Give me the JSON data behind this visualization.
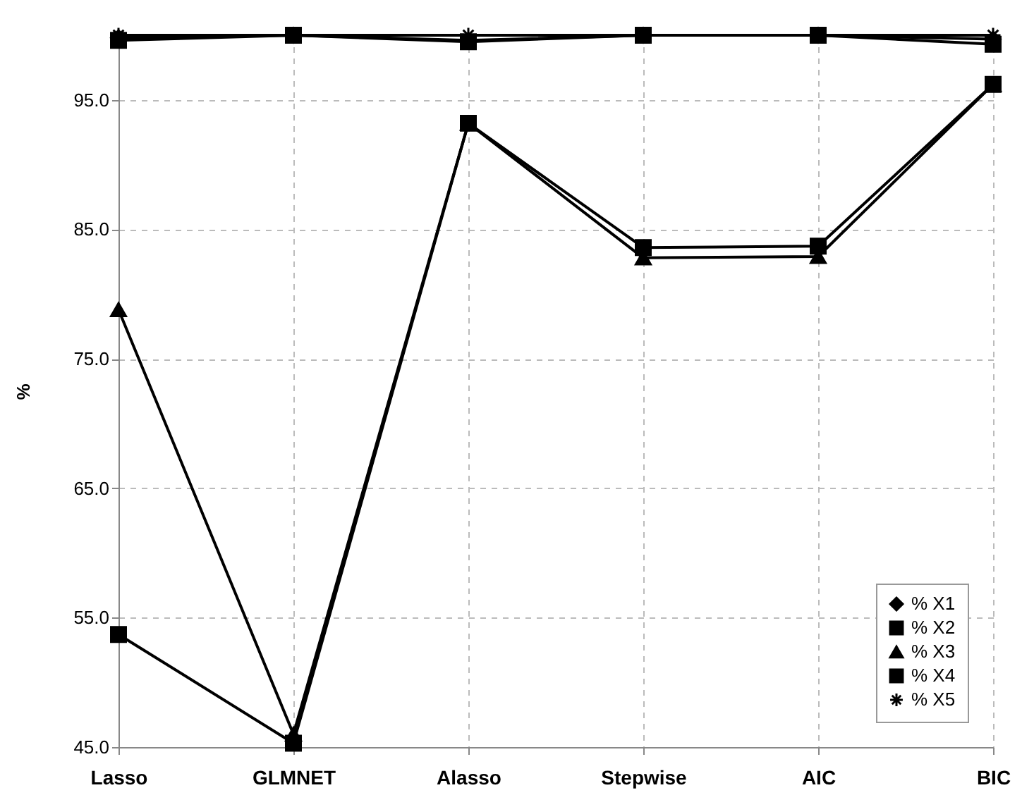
{
  "chart_data": {
    "type": "line",
    "ylabel": "%",
    "categories": [
      "Lasso",
      "GLMNET",
      "Alasso",
      "Stepwise",
      "AIC",
      "BIC"
    ],
    "ylim": [
      45,
      100
    ],
    "yticks": [
      {
        "value": 45,
        "label": "45.0"
      },
      {
        "value": 55,
        "label": "55.0"
      },
      {
        "value": 65,
        "label": "65.0"
      },
      {
        "value": 75,
        "label": "75.0"
      },
      {
        "value": 85,
        "label": "85.0"
      },
      {
        "value": 95,
        "label": "95.0"
      }
    ],
    "grid": true,
    "legend": "bottom right",
    "line_style": "solid",
    "series": [
      {
        "name": "% X1",
        "color": "#000000",
        "marker": "diamond",
        "values": [
          99.8,
          100,
          99.6,
          100,
          100,
          99.7
        ]
      },
      {
        "name": "% X2",
        "color": "#000000",
        "marker": "square",
        "values": [
          53.7,
          45.3,
          93.2,
          83.6,
          83.7,
          96.2
        ]
      },
      {
        "name": "% X3",
        "color": "#000000",
        "marker": "triangle",
        "values": [
          78.8,
          46.0,
          93.2,
          82.8,
          82.9,
          96.2
        ]
      },
      {
        "name": "% X4",
        "color": "#000000",
        "marker": "square",
        "values": [
          99.6,
          100,
          99.5,
          100,
          100,
          99.3
        ]
      },
      {
        "name": "% X5",
        "color": "#000000",
        "marker": "cross",
        "values": [
          100,
          100,
          100,
          100,
          100,
          100
        ]
      }
    ]
  }
}
